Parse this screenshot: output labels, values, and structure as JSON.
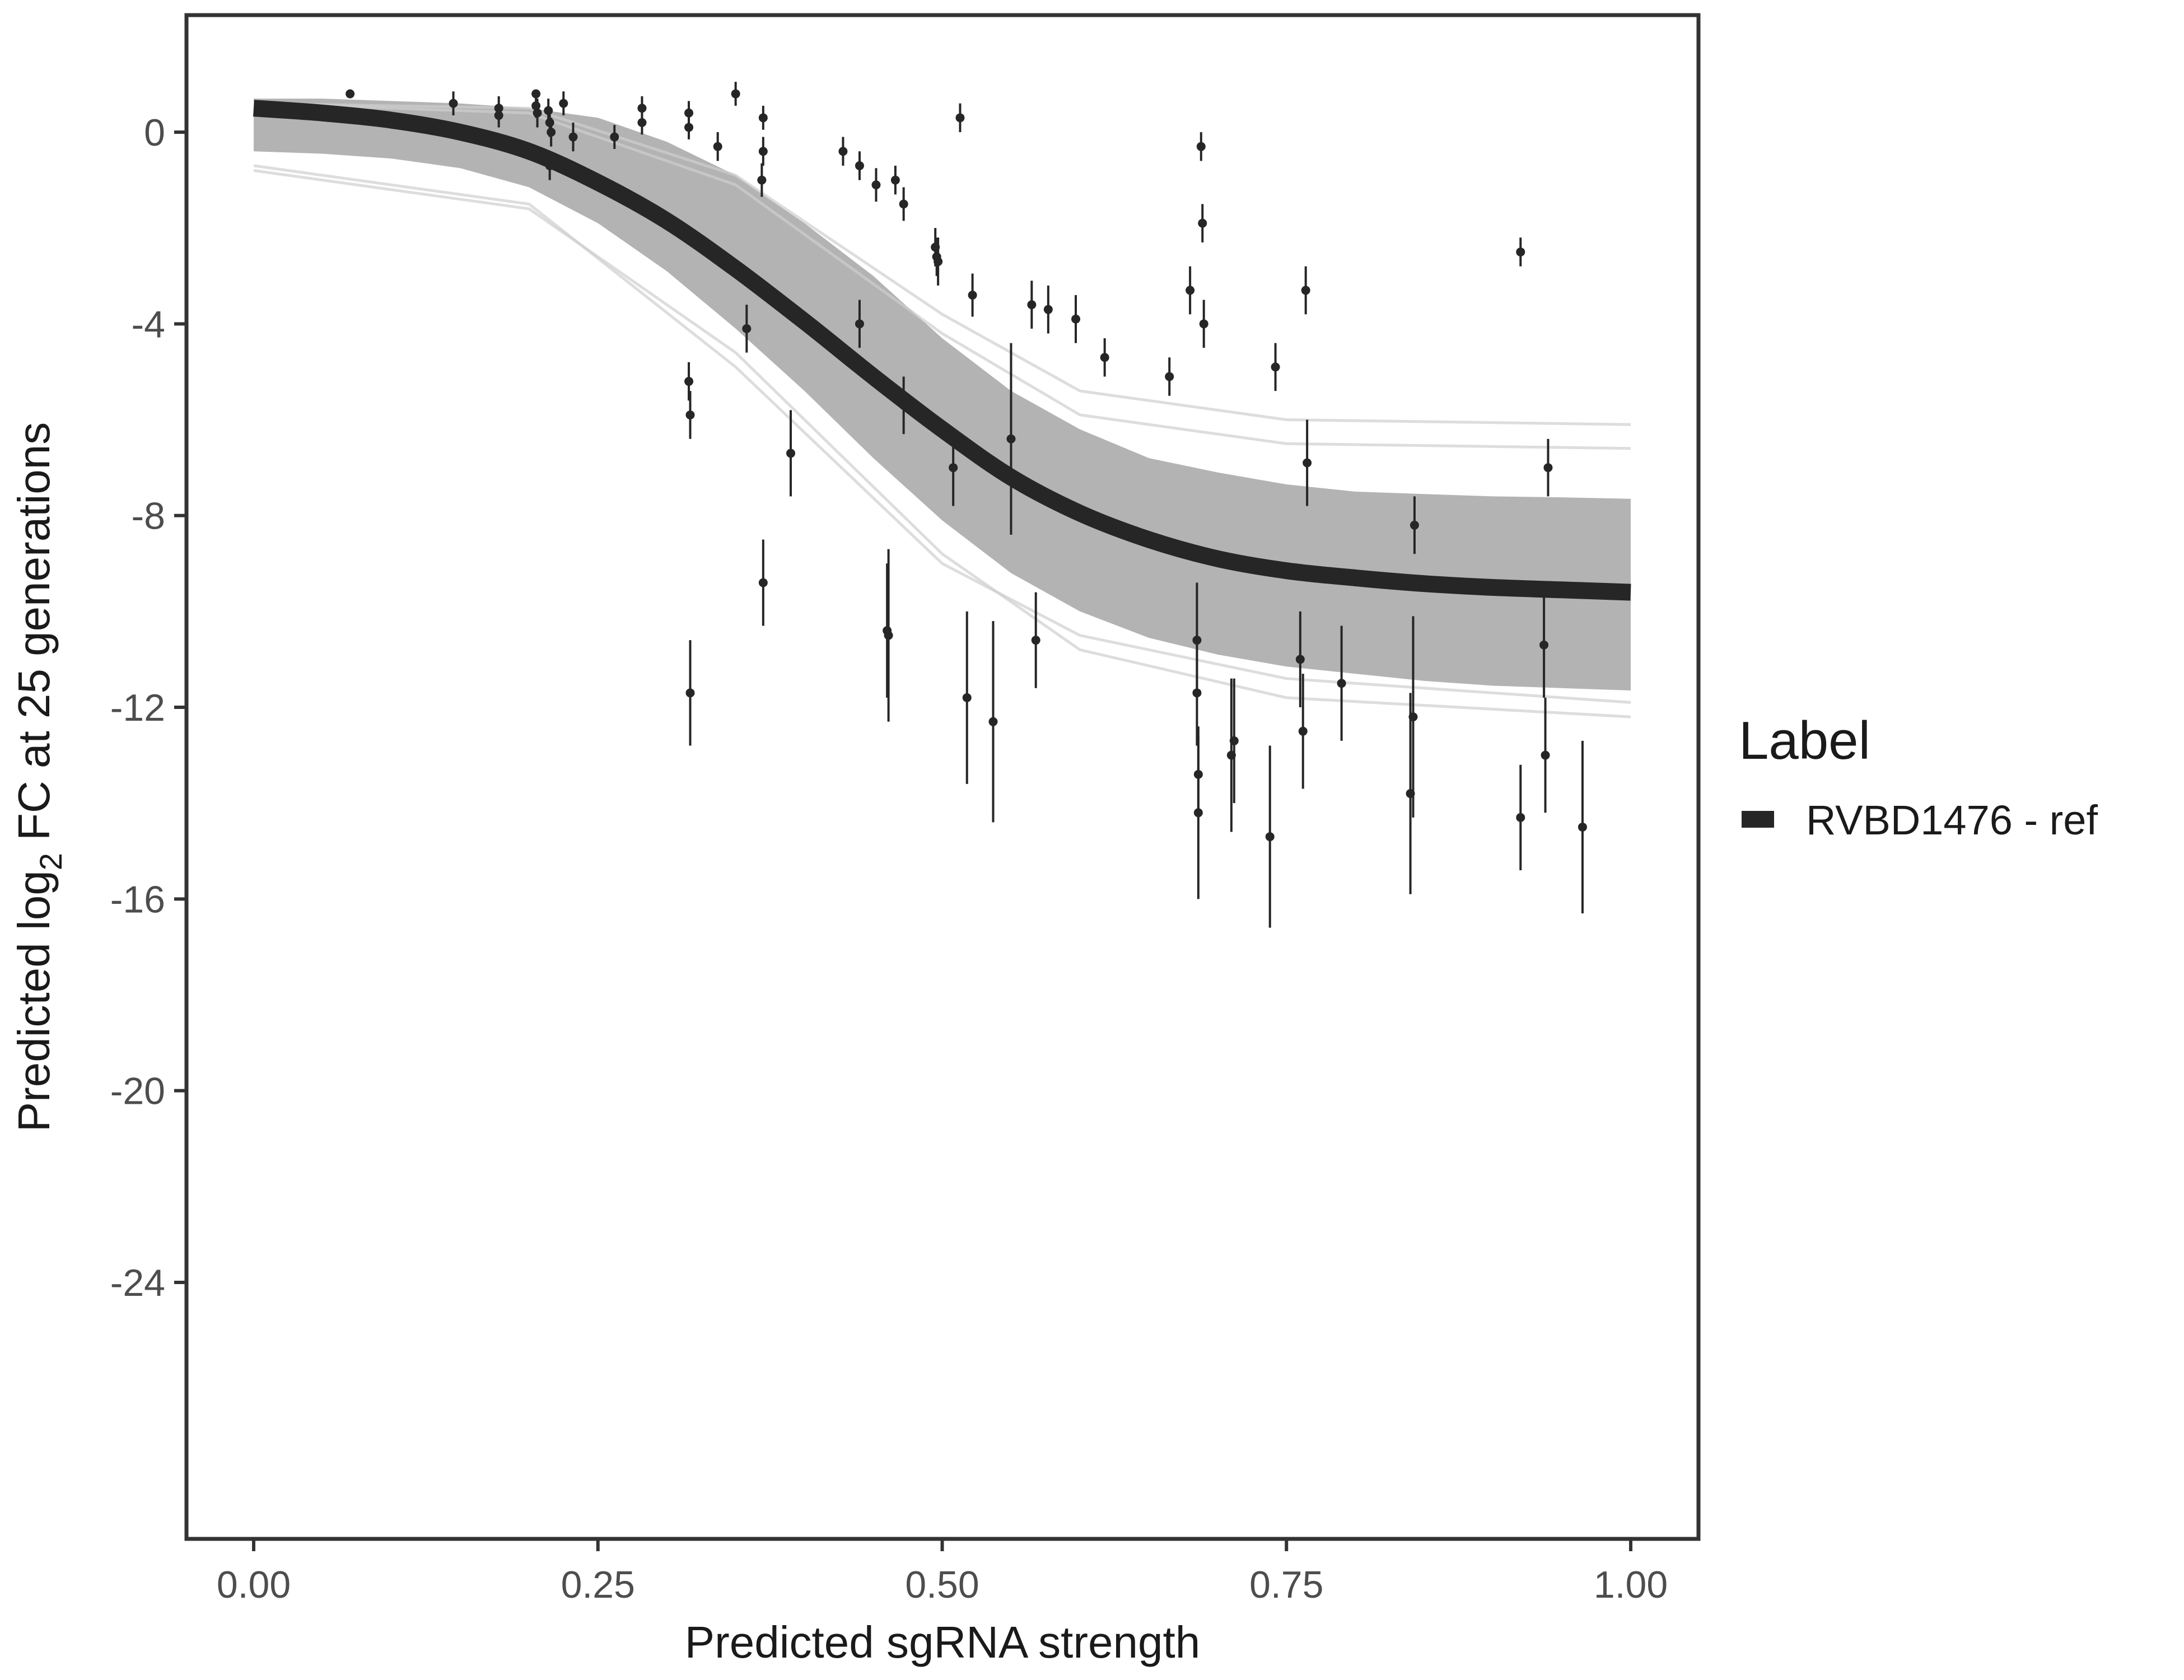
{
  "chart_data": {
    "type": "scatter",
    "title": "",
    "xlabel": "Predicted sgRNA strength",
    "ylabel_prefix": "Predicted  log",
    "ylabel_subscript": "2",
    "ylabel_suffix": " FC at 25 generations",
    "xlim": [
      -0.1,
      2.1
    ],
    "ylim": [
      -29.8,
      5.0
    ],
    "x_ticks": [
      0.0,
      0.25,
      0.5,
      0.75,
      1.0
    ],
    "x_tick_labels": [
      "0.00",
      "0.25",
      "0.50",
      "0.75",
      "1.00"
    ],
    "y_ticks": [
      0,
      -4,
      -8,
      -12,
      -16,
      -20,
      -24
    ],
    "y_tick_labels": [
      "0",
      "-4",
      "-8",
      "-12",
      "-16",
      "-20",
      "-24"
    ],
    "grid": false,
    "legend": {
      "title": "Label",
      "position": "right",
      "entries": [
        {
          "label": "RVBD1476 - ref",
          "color": "#262626"
        }
      ]
    },
    "fit_curve": {
      "name": "RVBD1476 - ref",
      "color": "#262626",
      "x": [
        0.0,
        0.05,
        0.1,
        0.15,
        0.2,
        0.25,
        0.3,
        0.35,
        0.4,
        0.45,
        0.5,
        0.55,
        0.6,
        0.65,
        0.7,
        0.75,
        0.8,
        0.85,
        0.9,
        0.95,
        1.0
      ],
      "y": [
        0.5,
        0.4,
        0.25,
        0.0,
        -0.4,
        -1.05,
        -1.85,
        -2.85,
        -3.95,
        -5.1,
        -6.2,
        -7.2,
        -7.95,
        -8.5,
        -8.9,
        -9.15,
        -9.3,
        -9.42,
        -9.5,
        -9.55,
        -9.6
      ]
    },
    "posterior_band": {
      "color": "#a6a6a6",
      "x": [
        0.0,
        0.05,
        0.1,
        0.15,
        0.2,
        0.25,
        0.3,
        0.35,
        0.4,
        0.45,
        0.5,
        0.55,
        0.6,
        0.65,
        0.7,
        0.75,
        0.8,
        0.85,
        0.9,
        0.95,
        1.0
      ],
      "upper": [
        0.7,
        0.7,
        0.65,
        0.6,
        0.5,
        0.3,
        -0.2,
        -0.9,
        -1.9,
        -3.0,
        -4.3,
        -5.4,
        -6.2,
        -6.8,
        -7.1,
        -7.35,
        -7.5,
        -7.55,
        -7.6,
        -7.62,
        -7.65
      ],
      "lower": [
        -0.4,
        -0.45,
        -0.55,
        -0.75,
        -1.15,
        -1.9,
        -2.9,
        -4.1,
        -5.4,
        -6.8,
        -8.1,
        -9.2,
        -10.0,
        -10.55,
        -10.9,
        -11.15,
        -11.3,
        -11.45,
        -11.55,
        -11.6,
        -11.65
      ]
    },
    "posterior_outlier_lines": [
      {
        "x": [
          0.0,
          0.2,
          0.35,
          0.5,
          0.6,
          0.75,
          1.0
        ],
        "y": [
          0.6,
          0.5,
          -0.9,
          -3.8,
          -5.4,
          -6.0,
          -6.1
        ]
      },
      {
        "x": [
          0.0,
          0.2,
          0.35,
          0.5,
          0.6,
          0.75,
          1.0
        ],
        "y": [
          0.6,
          0.4,
          -1.1,
          -4.2,
          -5.9,
          -6.5,
          -6.6
        ]
      },
      {
        "x": [
          0.0,
          0.2,
          0.35,
          0.5,
          0.6,
          0.75,
          1.0
        ],
        "y": [
          -0.8,
          -1.6,
          -4.6,
          -8.8,
          -10.8,
          -11.8,
          -12.2
        ]
      },
      {
        "x": [
          0.0,
          0.2,
          0.35,
          0.5,
          0.6,
          0.75,
          1.0
        ],
        "y": [
          -0.7,
          -1.5,
          -4.9,
          -9.0,
          -10.5,
          -11.4,
          -11.9
        ]
      }
    ],
    "points": [
      {
        "x": 0.07,
        "y": 0.8,
        "lo": 0.8,
        "hi": 0.8
      },
      {
        "x": 0.145,
        "y": 0.6,
        "lo": 0.35,
        "hi": 0.85
      },
      {
        "x": 0.178,
        "y": 0.5,
        "lo": 0.25,
        "hi": 0.75
      },
      {
        "x": 0.178,
        "y": 0.35,
        "lo": 0.1,
        "hi": 0.6
      },
      {
        "x": 0.205,
        "y": 0.8,
        "lo": 0.8,
        "hi": 0.8
      },
      {
        "x": 0.205,
        "y": 0.55,
        "lo": 0.3,
        "hi": 0.8
      },
      {
        "x": 0.206,
        "y": 0.4,
        "lo": 0.1,
        "hi": 0.7
      },
      {
        "x": 0.214,
        "y": 0.45,
        "lo": 0.2,
        "hi": 0.7
      },
      {
        "x": 0.215,
        "y": 0.2,
        "lo": -0.1,
        "hi": 0.5
      },
      {
        "x": 0.216,
        "y": 0.0,
        "lo": -0.3,
        "hi": 0.3
      },
      {
        "x": 0.215,
        "y": -0.7,
        "lo": -1.0,
        "hi": -0.4
      },
      {
        "x": 0.225,
        "y": 0.6,
        "lo": 0.35,
        "hi": 0.85
      },
      {
        "x": 0.232,
        "y": -0.1,
        "lo": -0.4,
        "hi": 0.2
      },
      {
        "x": 0.262,
        "y": -0.1,
        "lo": -0.35,
        "hi": 0.15
      },
      {
        "x": 0.282,
        "y": 0.5,
        "lo": 0.25,
        "hi": 0.75
      },
      {
        "x": 0.282,
        "y": 0.2,
        "lo": -0.05,
        "hi": 0.45
      },
      {
        "x": 0.316,
        "y": 0.4,
        "lo": 0.15,
        "hi": 0.65
      },
      {
        "x": 0.316,
        "y": 0.1,
        "lo": -0.15,
        "hi": 0.35
      },
      {
        "x": 0.316,
        "y": -5.2,
        "lo": -5.6,
        "hi": -4.8
      },
      {
        "x": 0.317,
        "y": -5.9,
        "lo": -6.4,
        "hi": -5.4
      },
      {
        "x": 0.317,
        "y": -11.7,
        "lo": -12.8,
        "hi": -10.6
      },
      {
        "x": 0.337,
        "y": -0.3,
        "lo": -0.6,
        "hi": 0.0
      },
      {
        "x": 0.35,
        "y": 0.8,
        "lo": 0.55,
        "hi": 1.05
      },
      {
        "x": 0.358,
        "y": -4.1,
        "lo": -4.6,
        "hi": -3.6
      },
      {
        "x": 0.37,
        "y": 0.3,
        "lo": 0.05,
        "hi": 0.55
      },
      {
        "x": 0.37,
        "y": -0.4,
        "lo": -0.7,
        "hi": -0.1
      },
      {
        "x": 0.369,
        "y": -1.0,
        "lo": -1.35,
        "hi": -0.65
      },
      {
        "x": 0.37,
        "y": -9.4,
        "lo": -10.3,
        "hi": -8.5
      },
      {
        "x": 0.39,
        "y": -6.7,
        "lo": -7.6,
        "hi": -5.8
      },
      {
        "x": 0.428,
        "y": -0.4,
        "lo": -0.7,
        "hi": -0.1
      },
      {
        "x": 0.44,
        "y": -0.7,
        "lo": -1.0,
        "hi": -0.4
      },
      {
        "x": 0.44,
        "y": -4.0,
        "lo": -4.5,
        "hi": -3.5
      },
      {
        "x": 0.452,
        "y": -1.1,
        "lo": -1.45,
        "hi": -0.75
      },
      {
        "x": 0.46,
        "y": -10.4,
        "lo": -11.8,
        "hi": -9.0
      },
      {
        "x": 0.461,
        "y": -10.5,
        "lo": -12.3,
        "hi": -8.7
      },
      {
        "x": 0.466,
        "y": -1.0,
        "lo": -1.3,
        "hi": -0.7
      },
      {
        "x": 0.472,
        "y": -1.5,
        "lo": -1.85,
        "hi": -1.15
      },
      {
        "x": 0.472,
        "y": -5.7,
        "lo": -6.3,
        "hi": -5.1
      },
      {
        "x": 0.495,
        "y": -2.4,
        "lo": -2.8,
        "hi": -2.0
      },
      {
        "x": 0.496,
        "y": -2.6,
        "lo": -3.0,
        "hi": -2.2
      },
      {
        "x": 0.497,
        "y": -2.7,
        "lo": -3.2,
        "hi": -2.2
      },
      {
        "x": 0.508,
        "y": -7.0,
        "lo": -7.8,
        "hi": -6.2
      },
      {
        "x": 0.513,
        "y": 0.3,
        "lo": 0.0,
        "hi": 0.6
      },
      {
        "x": 0.518,
        "y": -11.8,
        "lo": -13.6,
        "hi": -10.0
      },
      {
        "x": 0.522,
        "y": -3.4,
        "lo": -3.85,
        "hi": -2.95
      },
      {
        "x": 0.537,
        "y": -12.3,
        "lo": -14.4,
        "hi": -10.2
      },
      {
        "x": 0.55,
        "y": -6.4,
        "lo": -8.4,
        "hi": -4.4
      },
      {
        "x": 0.565,
        "y": -3.6,
        "lo": -4.1,
        "hi": -3.1
      },
      {
        "x": 0.568,
        "y": -10.6,
        "lo": -11.6,
        "hi": -9.6
      },
      {
        "x": 0.577,
        "y": -3.7,
        "lo": -4.2,
        "hi": -3.2
      },
      {
        "x": 0.597,
        "y": -3.9,
        "lo": -4.4,
        "hi": -3.4
      },
      {
        "x": 0.618,
        "y": -4.7,
        "lo": -5.1,
        "hi": -4.3
      },
      {
        "x": 0.665,
        "y": -5.1,
        "lo": -5.5,
        "hi": -4.7
      },
      {
        "x": 0.68,
        "y": -3.3,
        "lo": -3.8,
        "hi": -2.8
      },
      {
        "x": 0.685,
        "y": -10.6,
        "lo": -11.8,
        "hi": -9.4
      },
      {
        "x": 0.685,
        "y": -11.7,
        "lo": -12.8,
        "hi": -10.6
      },
      {
        "x": 0.686,
        "y": -13.4,
        "lo": -14.2,
        "hi": -12.6
      },
      {
        "x": 0.686,
        "y": -14.2,
        "lo": -16.0,
        "hi": -12.4
      },
      {
        "x": 0.688,
        "y": -0.3,
        "lo": -0.6,
        "hi": 0.0
      },
      {
        "x": 0.689,
        "y": -1.9,
        "lo": -2.3,
        "hi": -1.5
      },
      {
        "x": 0.69,
        "y": -4.0,
        "lo": -4.5,
        "hi": -3.5
      },
      {
        "x": 0.71,
        "y": -13.0,
        "lo": -14.6,
        "hi": -11.4
      },
      {
        "x": 0.712,
        "y": -12.7,
        "lo": -14.0,
        "hi": -11.4
      },
      {
        "x": 0.738,
        "y": -14.7,
        "lo": -16.6,
        "hi": -12.8
      },
      {
        "x": 0.742,
        "y": -4.9,
        "lo": -5.4,
        "hi": -4.4
      },
      {
        "x": 0.76,
        "y": -11.0,
        "lo": -12.0,
        "hi": -10.0
      },
      {
        "x": 0.762,
        "y": -12.5,
        "lo": -13.7,
        "hi": -11.3
      },
      {
        "x": 0.764,
        "y": -3.3,
        "lo": -3.8,
        "hi": -2.8
      },
      {
        "x": 0.765,
        "y": -6.9,
        "lo": -7.8,
        "hi": -6.0
      },
      {
        "x": 0.79,
        "y": -11.5,
        "lo": -12.7,
        "hi": -10.3
      },
      {
        "x": 0.84,
        "y": -13.8,
        "lo": -15.9,
        "hi": -11.7
      },
      {
        "x": 0.842,
        "y": -12.2,
        "lo": -14.3,
        "hi": -10.1
      },
      {
        "x": 0.843,
        "y": -8.2,
        "lo": -8.8,
        "hi": -7.6
      },
      {
        "x": 0.92,
        "y": -2.5,
        "lo": -2.8,
        "hi": -2.2
      },
      {
        "x": 0.92,
        "y": -14.3,
        "lo": -15.4,
        "hi": -13.2
      },
      {
        "x": 0.937,
        "y": -10.7,
        "lo": -11.8,
        "hi": -9.6
      },
      {
        "x": 0.938,
        "y": -13.0,
        "lo": -14.2,
        "hi": -11.8
      },
      {
        "x": 0.94,
        "y": -7.0,
        "lo": -7.6,
        "hi": -6.4
      },
      {
        "x": 0.965,
        "y": -14.5,
        "lo": -16.3,
        "hi": -12.7
      }
    ]
  }
}
